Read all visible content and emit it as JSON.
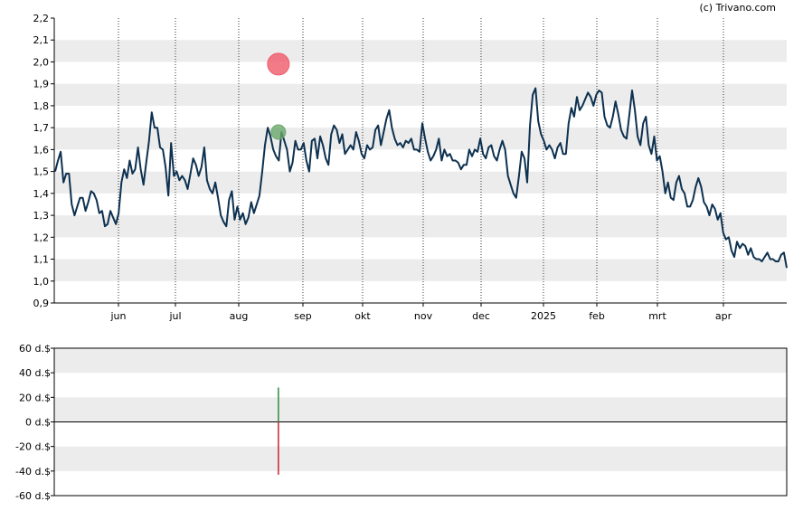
{
  "copyright": "(c) Trivano.com",
  "chart_data": [
    {
      "type": "line",
      "name": "price",
      "ylim": [
        0.9,
        2.2
      ],
      "y_ticks": [
        "0,9",
        "1,0",
        "1,1",
        "1,2",
        "1,3",
        "1,4",
        "1,5",
        "1,6",
        "1,7",
        "1,8",
        "1,9",
        "2,0",
        "2,1",
        "2,2"
      ],
      "x_ticks": [
        "jun",
        "jul",
        "aug",
        "sep",
        "okt",
        "nov",
        "dec",
        "2025",
        "feb",
        "mrt",
        "apr"
      ],
      "grid": "alternating horizontal bands, dotted vertical month lines",
      "series_color": "#0d3150",
      "values": [
        1.5,
        1.55,
        1.59,
        1.45,
        1.49,
        1.49,
        1.35,
        1.3,
        1.34,
        1.38,
        1.38,
        1.32,
        1.36,
        1.41,
        1.4,
        1.37,
        1.31,
        1.32,
        1.25,
        1.26,
        1.32,
        1.29,
        1.26,
        1.31,
        1.45,
        1.51,
        1.47,
        1.55,
        1.49,
        1.51,
        1.61,
        1.51,
        1.44,
        1.54,
        1.64,
        1.77,
        1.7,
        1.7,
        1.61,
        1.6,
        1.52,
        1.39,
        1.63,
        1.48,
        1.5,
        1.46,
        1.48,
        1.46,
        1.42,
        1.49,
        1.56,
        1.53,
        1.48,
        1.52,
        1.61,
        1.46,
        1.42,
        1.4,
        1.45,
        1.38,
        1.3,
        1.27,
        1.25,
        1.37,
        1.41,
        1.28,
        1.34,
        1.28,
        1.31,
        1.26,
        1.29,
        1.36,
        1.31,
        1.35,
        1.39,
        1.5,
        1.62,
        1.7,
        1.66,
        1.6,
        1.57,
        1.55,
        1.68,
        1.64,
        1.6,
        1.5,
        1.54,
        1.64,
        1.6,
        1.6,
        1.63,
        1.55,
        1.5,
        1.64,
        1.65,
        1.56,
        1.66,
        1.62,
        1.56,
        1.53,
        1.67,
        1.71,
        1.69,
        1.63,
        1.67,
        1.58,
        1.6,
        1.62,
        1.6,
        1.68,
        1.64,
        1.58,
        1.56,
        1.62,
        1.6,
        1.61,
        1.69,
        1.71,
        1.62,
        1.68,
        1.74,
        1.78,
        1.7,
        1.65,
        1.62,
        1.63,
        1.61,
        1.64,
        1.63,
        1.65,
        1.6,
        1.6,
        1.59,
        1.72,
        1.65,
        1.59,
        1.55,
        1.57,
        1.6,
        1.65,
        1.55,
        1.6,
        1.57,
        1.58,
        1.55,
        1.55,
        1.54,
        1.51,
        1.53,
        1.53,
        1.6,
        1.57,
        1.6,
        1.59,
        1.65,
        1.58,
        1.56,
        1.61,
        1.62,
        1.57,
        1.55,
        1.6,
        1.64,
        1.6,
        1.48,
        1.44,
        1.4,
        1.38,
        1.48,
        1.59,
        1.56,
        1.45,
        1.71,
        1.85,
        1.88,
        1.73,
        1.67,
        1.64,
        1.6,
        1.62,
        1.6,
        1.56,
        1.61,
        1.63,
        1.58,
        1.58,
        1.72,
        1.79,
        1.75,
        1.84,
        1.78,
        1.8,
        1.83,
        1.86,
        1.84,
        1.8,
        1.85,
        1.87,
        1.86,
        1.75,
        1.71,
        1.7,
        1.75,
        1.82,
        1.76,
        1.69,
        1.66,
        1.65,
        1.76,
        1.87,
        1.78,
        1.66,
        1.62,
        1.72,
        1.75,
        1.62,
        1.58,
        1.66,
        1.55,
        1.57,
        1.5,
        1.4,
        1.45,
        1.38,
        1.37,
        1.45,
        1.48,
        1.42,
        1.4,
        1.34,
        1.34,
        1.37,
        1.43,
        1.47,
        1.43,
        1.36,
        1.34,
        1.3,
        1.35,
        1.33,
        1.28,
        1.31,
        1.22,
        1.19,
        1.2,
        1.14,
        1.11,
        1.18,
        1.15,
        1.17,
        1.16,
        1.12,
        1.15,
        1.11,
        1.1,
        1.1,
        1.09,
        1.11,
        1.13,
        1.1,
        1.1,
        1.09,
        1.09,
        1.12,
        1.13,
        1.06
      ]
    },
    {
      "type": "scatter",
      "name": "markers",
      "points": [
        {
          "x_fraction_of_series": 0.306,
          "y": 1.99,
          "color": "#f05a6a",
          "kind": "sell"
        },
        {
          "x_fraction_of_series": 0.306,
          "y": 1.68,
          "color": "#6aa86a",
          "kind": "buy"
        }
      ]
    },
    {
      "type": "bar",
      "name": "insider transactions",
      "ylim": [
        -60,
        60
      ],
      "y_ticks": [
        "60 d.$",
        "40 d.$",
        "20 d.$",
        "0 d.$",
        "-20 d.$",
        "-40 d.$",
        "-60 d.$"
      ],
      "bars": [
        {
          "value": 28,
          "color": "#2e8b3e"
        },
        {
          "value": -43,
          "color": "#cc2233"
        }
      ]
    }
  ]
}
